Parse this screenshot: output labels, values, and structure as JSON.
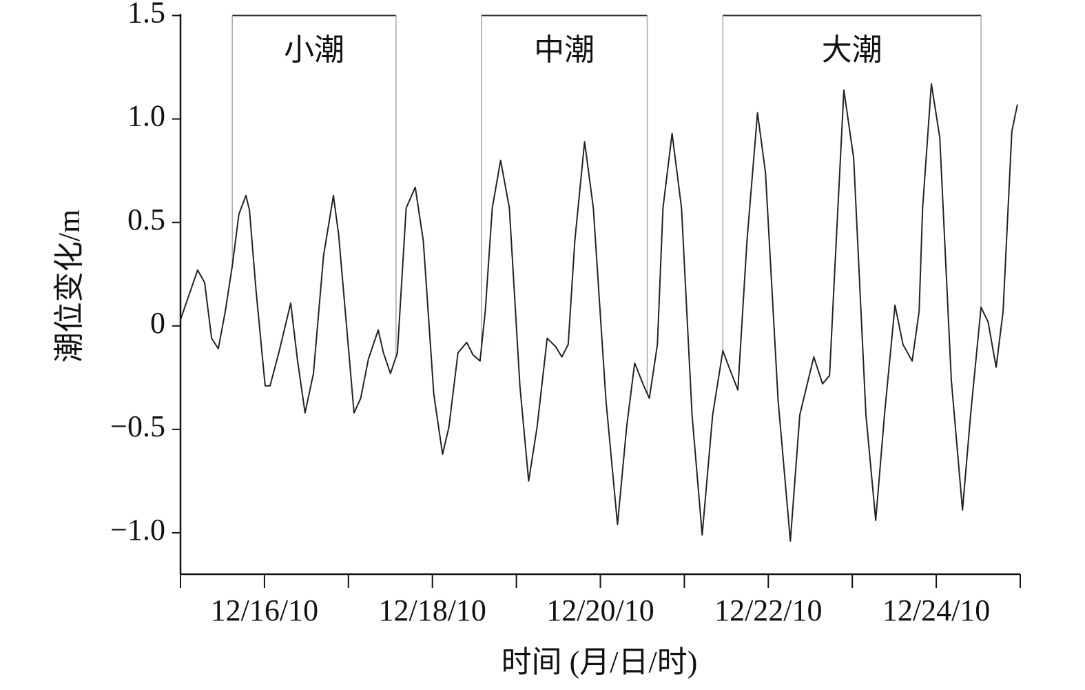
{
  "chart_data": {
    "type": "line",
    "y_label": "潮位变化/m",
    "x_label": "时间 (月/日/时)",
    "xlim": [
      0,
      240
    ],
    "xticks": [
      {
        "value": 24,
        "label": "12/16/10"
      },
      {
        "value": 72,
        "label": "12/18/10"
      },
      {
        "value": 120,
        "label": "12/20/10"
      },
      {
        "value": 168,
        "label": "12/22/10"
      },
      {
        "value": 216,
        "label": "12/24/10"
      }
    ],
    "x_minor_ticks": [
      0,
      48,
      96,
      144,
      192,
      240
    ],
    "ylim": [
      -1.2,
      1.5
    ],
    "yticks": [
      {
        "value": -1,
        "label": "−1.0"
      },
      {
        "value": -0.5,
        "label": "−0.5"
      },
      0,
      0.5,
      {
        "value": 1,
        "label": "1.0"
      },
      {
        "value": 1.5,
        "label": "1.5"
      }
    ],
    "grid": false,
    "color": "#222222",
    "x": [
      0,
      4.9,
      6.9,
      8.9,
      10.8,
      12.8,
      14.8,
      16.7,
      18.7,
      19.7,
      21.6,
      24.2,
      25.6,
      28.1,
      31.5,
      33.4,
      35.6,
      38.0,
      40.9,
      43.7,
      45.2,
      47.4,
      49.6,
      51.5,
      53.7,
      56.5,
      58.0,
      60.0,
      62.0,
      64.5,
      67.1,
      69.4,
      72.4,
      74.9,
      76.7,
      79.3,
      81.8,
      83.6,
      85.6,
      87.1,
      89.1,
      91.5,
      94.0,
      97.0,
      99.5,
      101.9,
      104.8,
      107.2,
      109.0,
      110.8,
      112.7,
      115.5,
      118.0,
      121.6,
      124.9,
      127.5,
      129.8,
      132.4,
      134.0,
      136.3,
      137.9,
      140.5,
      143.2,
      146.2,
      149.1,
      152.1,
      155.0,
      157.0,
      159.3,
      161.9,
      164.9,
      167.2,
      170.8,
      174.3,
      177.0,
      181.0,
      183.5,
      185.5,
      186.9,
      189.6,
      192.4,
      195.9,
      198.7,
      201.2,
      204.2,
      206.5,
      209.1,
      211.1,
      212.1,
      214.6,
      217.0,
      220.3,
      223.5,
      225.8,
      228.8,
      230.8,
      233.1,
      235.1,
      237.6,
      239.2
    ],
    "values": [
      0.03,
      0.27,
      0.21,
      -0.06,
      -0.11,
      0.07,
      0.29,
      0.54,
      0.63,
      0.56,
      0.17,
      -0.29,
      -0.29,
      -0.13,
      0.11,
      -0.16,
      -0.42,
      -0.23,
      0.34,
      0.63,
      0.44,
      0.01,
      -0.42,
      -0.35,
      -0.16,
      -0.02,
      -0.13,
      -0.23,
      -0.13,
      0.57,
      0.67,
      0.41,
      -0.33,
      -0.62,
      -0.49,
      -0.13,
      -0.08,
      -0.14,
      -0.17,
      0.07,
      0.57,
      0.8,
      0.57,
      -0.29,
      -0.75,
      -0.49,
      -0.06,
      -0.1,
      -0.15,
      -0.09,
      0.41,
      0.89,
      0.57,
      -0.36,
      -0.96,
      -0.49,
      -0.18,
      -0.29,
      -0.35,
      -0.09,
      0.57,
      0.93,
      0.57,
      -0.43,
      -1.01,
      -0.43,
      -0.12,
      -0.21,
      -0.31,
      0.41,
      1.03,
      0.74,
      -0.36,
      -1.04,
      -0.43,
      -0.15,
      -0.28,
      -0.24,
      0.24,
      1.14,
      0.81,
      -0.43,
      -0.94,
      -0.43,
      0.1,
      -0.09,
      -0.17,
      0.07,
      0.57,
      1.17,
      0.91,
      -0.26,
      -0.89,
      -0.43,
      0.09,
      0.02,
      -0.2,
      0.07,
      0.94,
      1.07
    ],
    "annotations": [
      {
        "text": "小潮",
        "x_start": 14.8,
        "x_end": 61.6
      },
      {
        "text": "中潮",
        "x_start": 86.0,
        "x_end": 133.4
      },
      {
        "text": "大潮",
        "x_start": 155.0,
        "x_end": 228.8
      }
    ]
  }
}
